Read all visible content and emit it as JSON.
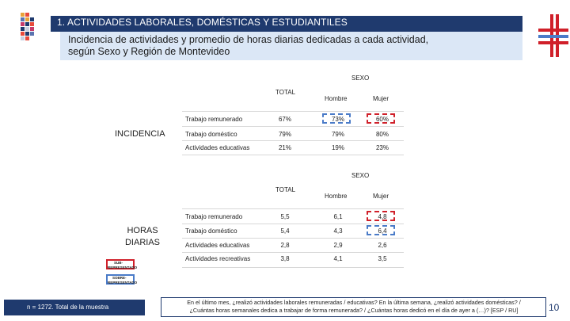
{
  "header": {
    "title": "1. ACTIVIDADES LABORALES, DOMÉSTICAS Y ESTUDIANTILES",
    "subtitle_line1": "Incidencia de actividades y promedio de horas diarias dedicadas a cada actividad,",
    "subtitle_line2": "según Sexo y Región de Montevideo"
  },
  "incidencia": {
    "section_label": "INCIDENCIA",
    "sexo_label": "SEXO",
    "total_label": "TOTAL",
    "col_hombre": "Hombre",
    "col_mujer": "Mujer",
    "rows": [
      {
        "label": "Trabajo remunerado",
        "total": "67%",
        "hombre": "73%",
        "mujer": "60%"
      },
      {
        "label": "Trabajo doméstico",
        "total": "79%",
        "hombre": "79%",
        "mujer": "80%"
      },
      {
        "label": "Actividades educativas",
        "total": "21%",
        "hombre": "19%",
        "mujer": "23%"
      }
    ]
  },
  "horas": {
    "section_label_line1": "HORAS",
    "section_label_line2": "DIARIAS",
    "sexo_label": "SEXO",
    "total_label": "TOTAL",
    "col_hombre": "Hombre",
    "col_mujer": "Mujer",
    "rows": [
      {
        "label": "Trabajo remunerado",
        "total": "5,5",
        "hombre": "6,1",
        "mujer": "4,8"
      },
      {
        "label": "Trabajo doméstico",
        "total": "5,4",
        "hombre": "4,3",
        "mujer": "6,4"
      },
      {
        "label": "Actividades educativas",
        "total": "2,8",
        "hombre": "2,9",
        "mujer": "2,6"
      },
      {
        "label": "Actividades recreativas",
        "total": "3,8",
        "hombre": "4,1",
        "mujer": "3,5"
      }
    ]
  },
  "legend": {
    "sub_label": "SUB-",
    "sub_sublabel": "REPRESENTADO",
    "sobre_label": "SOBRE-",
    "sobre_sublabel": "REPRESENTADO",
    "colors": {
      "sub": "#d0202a",
      "sobre": "#4a7bc8"
    }
  },
  "footer": {
    "sample": "n = 1272. Total de la muestra",
    "question_line1": "En el último mes, ¿realizó actividades laborales remuneradas / educativas? En la última semana, ¿realizó actividades domésticas? /",
    "question_line2": "¿Cuántas horas semanales dedica a trabajar de forma remunerada? / ¿Cuántas horas dedicó en el día de ayer a (…)? [ESP / RU]",
    "page_number": "10"
  },
  "colors": {
    "navy": "#1f3a6e",
    "light_blue": "#dbe7f6",
    "red": "#d0202a",
    "blue": "#4a7bc8"
  }
}
